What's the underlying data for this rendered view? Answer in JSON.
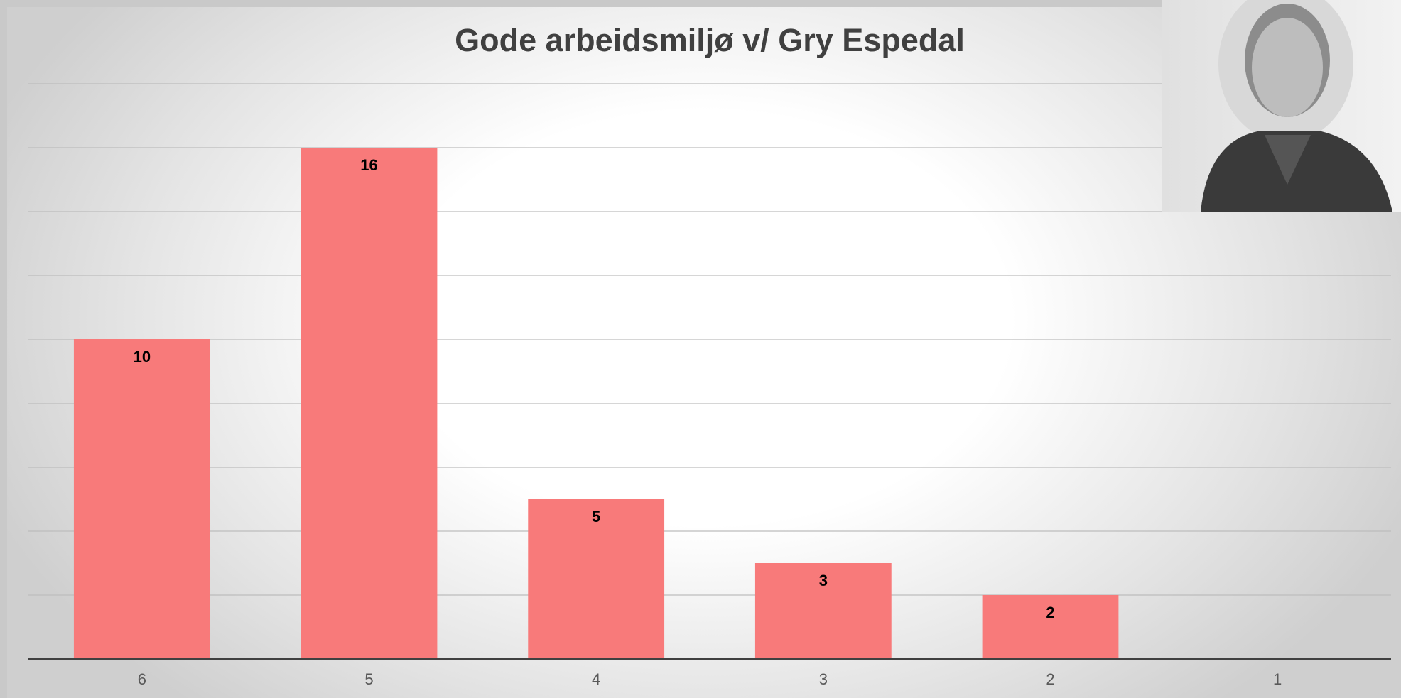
{
  "chart_data": {
    "type": "bar",
    "title": "Gode arbeidsmiljø v/ Gry Espedal",
    "categories": [
      "6",
      "5",
      "4",
      "3",
      "2",
      "1"
    ],
    "values": [
      10,
      16,
      5,
      3,
      2,
      null
    ],
    "color": "#f87a7a",
    "ylim": [
      0,
      18
    ],
    "yticks": [
      0,
      2,
      4,
      6,
      8,
      10,
      12,
      14,
      16,
      18
    ],
    "grid": true
  }
}
